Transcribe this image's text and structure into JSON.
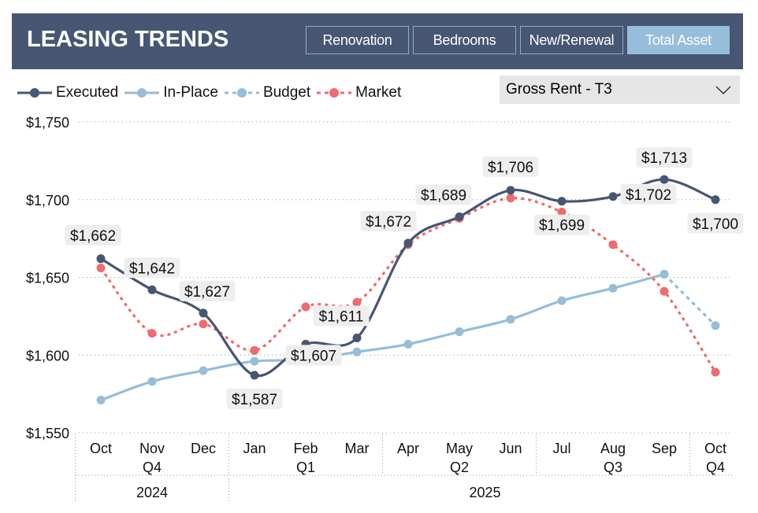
{
  "header": {
    "title": "LEASING TRENDS",
    "buttons": [
      {
        "label": "Renovation",
        "active": false
      },
      {
        "label": "Bedrooms",
        "active": false
      },
      {
        "label": "New/Renewal",
        "active": false
      },
      {
        "label": "Total Asset",
        "active": true
      }
    ]
  },
  "dropdown": {
    "selected": "Gross Rent - T3",
    "icon": "chevron-down-icon"
  },
  "colors": {
    "header": "#465673",
    "executed": "#465673",
    "in_place": "#96bdd9",
    "budget": "#96bdd9",
    "market": "#ee6b6e"
  },
  "chart_data": {
    "type": "line",
    "categories": [
      "Oct",
      "Nov",
      "Dec",
      "Jan",
      "Feb",
      "Mar",
      "Apr",
      "May",
      "Jun",
      "Jul",
      "Aug",
      "Sep",
      "Oct"
    ],
    "quarters": [
      {
        "label": "Q4",
        "span": 3
      },
      {
        "label": "Q1",
        "span": 3
      },
      {
        "label": "Q2",
        "span": 3
      },
      {
        "label": "Q3",
        "span": 3
      },
      {
        "label": "Q4",
        "span": 1
      }
    ],
    "years": [
      {
        "label": "2024",
        "span": 3
      },
      {
        "label": "2025",
        "span": 10
      }
    ],
    "yticks": [
      "$1,750",
      "$1,700",
      "$1,650",
      "$1,600",
      "$1,550"
    ],
    "ylim": [
      1550,
      1750
    ],
    "grid": true,
    "legend_position": "top-left",
    "series": [
      {
        "name": "Executed",
        "style": "solid",
        "values": [
          1662,
          1642,
          1627,
          1587,
          1607,
          1611,
          1672,
          1689,
          1706,
          1699,
          1702,
          1713,
          1700
        ],
        "labels": [
          "$1,662",
          "$1,642",
          "$1,627",
          "$1,587",
          "$1,607",
          "$1,611",
          "$1,672",
          "$1,689",
          "$1,706",
          "$1,699",
          "$1,702",
          "$1,713",
          "$1,700"
        ]
      },
      {
        "name": "In-Place",
        "style": "solid",
        "values": [
          1571,
          1583,
          1590,
          1596,
          1597,
          1602,
          1607,
          1615,
          1623,
          1635,
          1643,
          1652,
          null
        ]
      },
      {
        "name": "Budget",
        "style": "dashed",
        "values": [
          null,
          null,
          null,
          null,
          null,
          null,
          null,
          null,
          null,
          null,
          null,
          1652,
          1619
        ]
      },
      {
        "name": "Market",
        "style": "dotted",
        "values": [
          1656,
          1614,
          1620,
          1603,
          1631,
          1634,
          1671,
          1688,
          1701,
          1692,
          1671,
          1641,
          1589
        ]
      }
    ]
  }
}
